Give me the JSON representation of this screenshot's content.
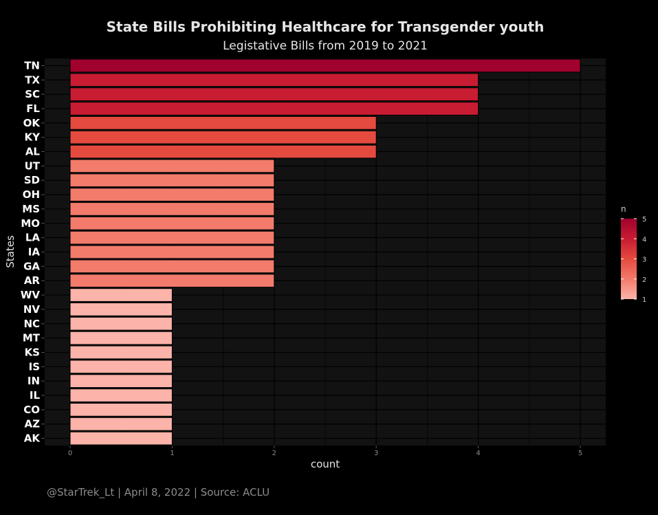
{
  "chart_data": {
    "type": "bar",
    "orientation": "horizontal",
    "title": "State Bills Prohibiting Healthcare for Transgender youth",
    "subtitle": "Legistative Bills from 2019 to 2021",
    "xlabel": "count",
    "ylabel": "States",
    "caption": "@StarTrek_Lt | April 8, 2022 | Source: ACLU",
    "xlim": [
      0,
      5
    ],
    "x_ticks": [
      "0",
      "1",
      "2",
      "3",
      "4",
      "5"
    ],
    "grid": true,
    "categories": [
      "TN",
      "TX",
      "SC",
      "FL",
      "OK",
      "KY",
      "AL",
      "UT",
      "SD",
      "OH",
      "MS",
      "MO",
      "LA",
      "IA",
      "GA",
      "AR",
      "WV",
      "NV",
      "NC",
      "MT",
      "KS",
      "IS",
      "IN",
      "IL",
      "CO",
      "AZ",
      "AK"
    ],
    "values": [
      5,
      4,
      4,
      4,
      3,
      3,
      3,
      2,
      2,
      2,
      2,
      2,
      2,
      2,
      2,
      2,
      1,
      1,
      1,
      1,
      1,
      1,
      1,
      1,
      1,
      1,
      1
    ],
    "legend": {
      "title": "n",
      "position": "right",
      "ticks": [
        "1",
        "2",
        "3",
        "4",
        "5"
      ]
    },
    "colors": {
      "1": "#fcb3a9",
      "2": "#f27b6b",
      "3": "#e54a3f",
      "4": "#c81c33",
      "5": "#a0012d",
      "background": "#000000",
      "panel": "#121212",
      "grid": "#000000"
    }
  }
}
